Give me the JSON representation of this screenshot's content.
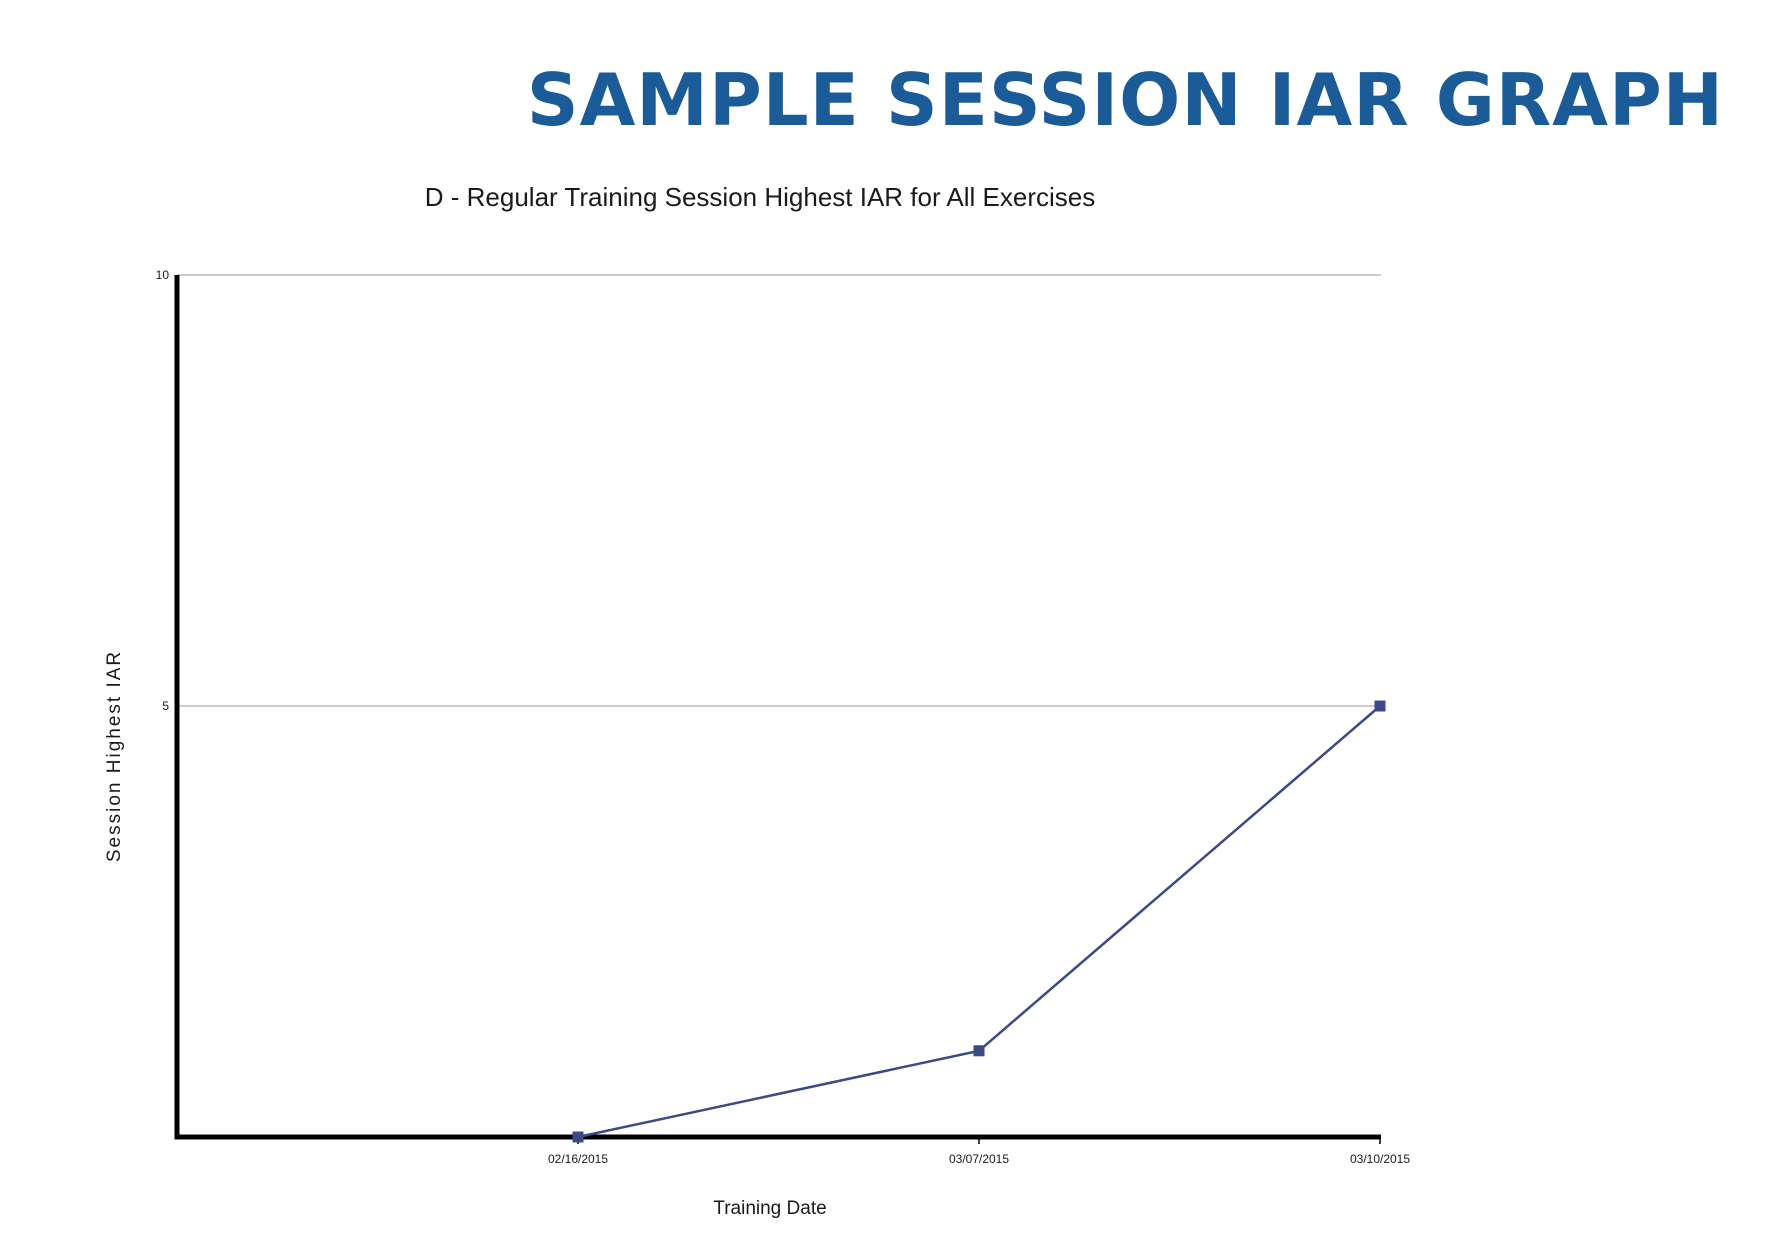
{
  "header": {
    "title": "SAMPLE SESSION IAR GRAPH"
  },
  "colors": {
    "title": "#1b5c98",
    "series": "#3a4a86",
    "grid": "#999999",
    "axis": "#000000"
  },
  "chart_data": {
    "type": "line",
    "title": "D - Regular Training  Session Highest IAR for All Exercises",
    "xlabel": "Training Date",
    "ylabel": "Session Highest IAR",
    "x_tick_labels": [
      "02/16/2015",
      "03/07/2015",
      "03/10/2015"
    ],
    "y_tick_labels": [
      "5",
      "10"
    ],
    "y_ticks": [
      5,
      10
    ],
    "ylim": [
      0,
      10
    ],
    "grid": "horizontal",
    "series": [
      {
        "x": [
          "02/16/2015",
          "03/07/2015",
          "03/10/2015"
        ],
        "values": [
          0,
          1,
          5
        ],
        "marker": "square"
      }
    ]
  }
}
